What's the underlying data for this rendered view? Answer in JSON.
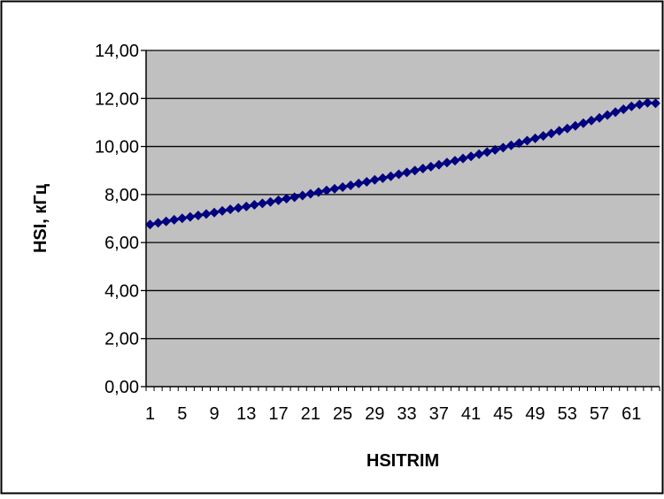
{
  "chart_data": {
    "type": "line",
    "title": "",
    "xlabel": "HSITRIM",
    "ylabel": "HSI, кГц",
    "ylim": [
      0,
      14
    ],
    "y_ticks": [
      "0,00",
      "2,00",
      "4,00",
      "6,00",
      "8,00",
      "10,00",
      "12,00",
      "14,00"
    ],
    "x_tick_labels": [
      "1",
      "5",
      "9",
      "13",
      "17",
      "21",
      "25",
      "29",
      "33",
      "37",
      "41",
      "45",
      "49",
      "53",
      "57",
      "61"
    ],
    "x_tick_values": [
      1,
      5,
      9,
      13,
      17,
      21,
      25,
      29,
      33,
      37,
      41,
      45,
      49,
      53,
      57,
      61
    ],
    "x_range": [
      1,
      64
    ],
    "grid": "horizontal",
    "plot_background": "#c0c0c0",
    "series": [
      {
        "color": "#000080",
        "marker": "diamond",
        "x": [
          1,
          2,
          3,
          4,
          5,
          6,
          7,
          8,
          9,
          10,
          11,
          12,
          13,
          14,
          15,
          16,
          17,
          18,
          19,
          20,
          21,
          22,
          23,
          24,
          25,
          26,
          27,
          28,
          29,
          30,
          31,
          32,
          33,
          34,
          35,
          36,
          37,
          38,
          39,
          40,
          41,
          42,
          43,
          44,
          45,
          46,
          47,
          48,
          49,
          50,
          51,
          52,
          53,
          54,
          55,
          56,
          57,
          58,
          59,
          60,
          61,
          62,
          63,
          64
        ],
        "values": [
          6.75,
          6.82,
          6.88,
          6.95,
          7.01,
          7.07,
          7.13,
          7.19,
          7.25,
          7.32,
          7.38,
          7.44,
          7.5,
          7.57,
          7.63,
          7.69,
          7.76,
          7.83,
          7.89,
          7.96,
          8.03,
          8.1,
          8.17,
          8.24,
          8.31,
          8.38,
          8.46,
          8.53,
          8.61,
          8.68,
          8.76,
          8.84,
          8.92,
          9.0,
          9.08,
          9.16,
          9.24,
          9.33,
          9.41,
          9.5,
          9.59,
          9.68,
          9.77,
          9.86,
          9.95,
          10.05,
          10.14,
          10.24,
          10.34,
          10.44,
          10.54,
          10.65,
          10.75,
          10.86,
          10.97,
          11.08,
          11.19,
          11.31,
          11.43,
          11.55,
          11.67,
          11.75,
          11.82,
          11.8
        ]
      }
    ]
  }
}
